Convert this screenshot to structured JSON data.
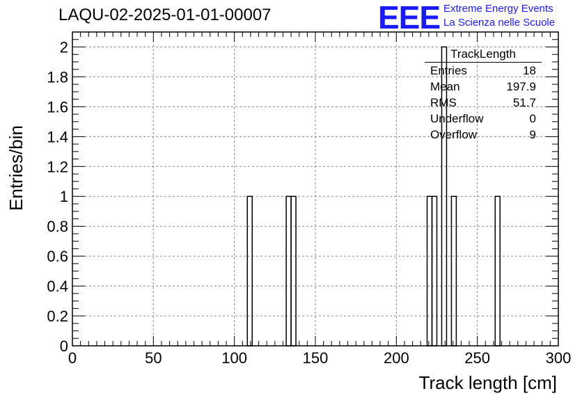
{
  "title": "LAQU-02-2025-01-01-00007",
  "logo": {
    "mark": "EEE",
    "line1": "Extreme Energy Events",
    "line2": "La Scienza nelle Scuole",
    "color": "#1a1aff"
  },
  "stats": {
    "name": "TrackLength",
    "rows": [
      {
        "label": "Entries",
        "value": "18"
      },
      {
        "label": "Mean",
        "value": "197.9"
      },
      {
        "label": "RMS",
        "value": "51.7"
      },
      {
        "label": "Underflow",
        "value": "0"
      },
      {
        "label": "Overflow",
        "value": "9"
      }
    ]
  },
  "chart_data": {
    "type": "bar",
    "xlabel": "Track length [cm]",
    "ylabel": "Entries/bin",
    "xlim": [
      0,
      300
    ],
    "ylim": [
      0,
      2.1
    ],
    "x_ticks": [
      0,
      50,
      100,
      150,
      200,
      250,
      300
    ],
    "y_ticks": [
      0,
      0.2,
      0.4,
      0.6,
      0.8,
      1,
      1.2,
      1.4,
      1.6,
      1.8,
      2
    ],
    "y_tick_labels": [
      "0",
      "0.2",
      "0.4",
      "0.6",
      "0.8",
      "1",
      "1.2",
      "1.4",
      "1.6",
      "1.8",
      "2"
    ],
    "grid": true,
    "bin_width": 3,
    "bins": [
      {
        "x0": 108,
        "x1": 111,
        "count": 1
      },
      {
        "x0": 132,
        "x1": 135,
        "count": 1
      },
      {
        "x0": 135,
        "x1": 138,
        "count": 1
      },
      {
        "x0": 219,
        "x1": 222,
        "count": 1
      },
      {
        "x0": 222,
        "x1": 225,
        "count": 1
      },
      {
        "x0": 228,
        "x1": 231,
        "count": 2
      },
      {
        "x0": 234,
        "x1": 237,
        "count": 1
      },
      {
        "x0": 261,
        "x1": 264,
        "count": 1
      }
    ]
  }
}
